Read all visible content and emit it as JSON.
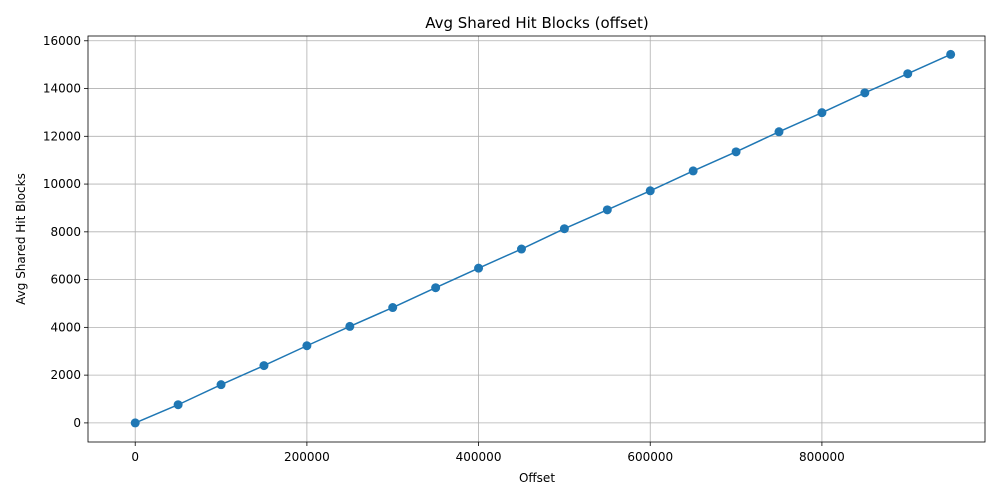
{
  "chart_data": {
    "type": "line",
    "title": "Avg Shared Hit Blocks (offset)",
    "xlabel": "Offset",
    "ylabel": "Avg Shared Hit Blocks",
    "xlim": [
      -55000,
      990000
    ],
    "ylim": [
      -800,
      16200
    ],
    "xticks": [
      0,
      200000,
      400000,
      600000,
      800000
    ],
    "yticks": [
      0,
      2000,
      4000,
      6000,
      8000,
      10000,
      12000,
      14000,
      16000
    ],
    "grid": true,
    "color": "#1f77b4",
    "marker": "circle",
    "series": [
      {
        "x": [
          0,
          50000,
          100000,
          150000,
          200000,
          250000,
          300000,
          350000,
          400000,
          450000,
          500000,
          550000,
          600000,
          650000,
          700000,
          750000,
          800000,
          850000,
          900000,
          950000
        ],
        "y": [
          0,
          760,
          1600,
          2400,
          3230,
          4040,
          4830,
          5660,
          6480,
          7280,
          8130,
          8920,
          9720,
          10550,
          11350,
          12190,
          12990,
          13820,
          14620,
          15430
        ]
      }
    ]
  }
}
